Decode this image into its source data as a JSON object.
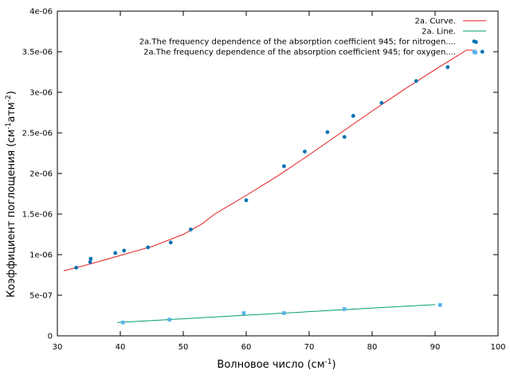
{
  "chart_data": {
    "type": "scatter",
    "xlabel": "Волновое число (см",
    "xlabel_sup": "-1",
    "xlabel_end": ")",
    "ylabel": "Коэффициент поглощения (см",
    "ylabel_sup1": "-1",
    "ylabel_mid": "атм",
    "ylabel_sup2": "-2",
    "ylabel_end": ")",
    "xlim": [
      30,
      100
    ],
    "ylim": [
      0,
      4e-06
    ],
    "x_ticks": [
      "30",
      "40",
      "50",
      "60",
      "70",
      "80",
      "90",
      "100"
    ],
    "x_tick_values": [
      30,
      40,
      50,
      60,
      70,
      80,
      90,
      100
    ],
    "y_ticks": [
      "0",
      "5e-07",
      "1e-06",
      "1.5e-06",
      "2e-06",
      "2.5e-06",
      "3e-06",
      "3.5e-06",
      "4e-06"
    ],
    "y_tick_values": [
      0,
      5e-07,
      1e-06,
      1.5e-06,
      2e-06,
      2.5e-06,
      3e-06,
      3.5e-06,
      4e-06
    ],
    "grid": false,
    "legend_position": "top-right",
    "series": [
      {
        "name": "2a. Curve.",
        "kind": "line",
        "color": "#e41a1c",
        "x": [
          31,
          35,
          40,
          45,
          50,
          53,
          55,
          60,
          65,
          70,
          75,
          80,
          85,
          90,
          95,
          96.5
        ],
        "y": [
          8e-07,
          8.8e-07,
          9.9e-07,
          1.1e-06,
          1.25e-06,
          1.38e-06,
          1.5e-06,
          1.73e-06,
          1.97e-06,
          2.23e-06,
          2.5e-06,
          2.77e-06,
          3.03e-06,
          3.28e-06,
          3.52e-06,
          3.52e-06
        ]
      },
      {
        "name": "2a. Line.",
        "kind": "line",
        "color": "#009e73",
        "x": [
          39.5,
          90
        ],
        "y": [
          1.65e-07,
          3.85e-07
        ]
      },
      {
        "name": "2a.The frequency dependence of the absorption coefficient    945; for nitrogen....",
        "kind": "points",
        "color": "#0072b2",
        "x": [
          33,
          35.2,
          35.3,
          39.2,
          40.6,
          44.4,
          48,
          51.2,
          60,
          66,
          69.3,
          72.9,
          75.6,
          77,
          81.5,
          87,
          92,
          96.5,
          97.5
        ],
        "y": [
          8.4e-07,
          9.1e-07,
          9.5e-07,
          1.02e-06,
          1.05e-06,
          1.09e-06,
          1.15e-06,
          1.31e-06,
          1.67e-06,
          2.09e-06,
          2.27e-06,
          2.51e-06,
          2.45e-06,
          2.71e-06,
          2.87e-06,
          3.14e-06,
          3.31e-06,
          3.62e-06,
          3.5e-06
        ]
      },
      {
        "name": "2a.The frequency dependence of the absorption coefficient    945; for oxygen....",
        "kind": "points",
        "color": "#56b4e9",
        "x": [
          40.4,
          47.8,
          59.6,
          66,
          75.6,
          90.8,
          96.4
        ],
        "y": [
          1.65e-07,
          2e-07,
          2.8e-07,
          2.8e-07,
          3.3e-07,
          3.8e-07,
          3.49e-06
        ]
      }
    ]
  }
}
